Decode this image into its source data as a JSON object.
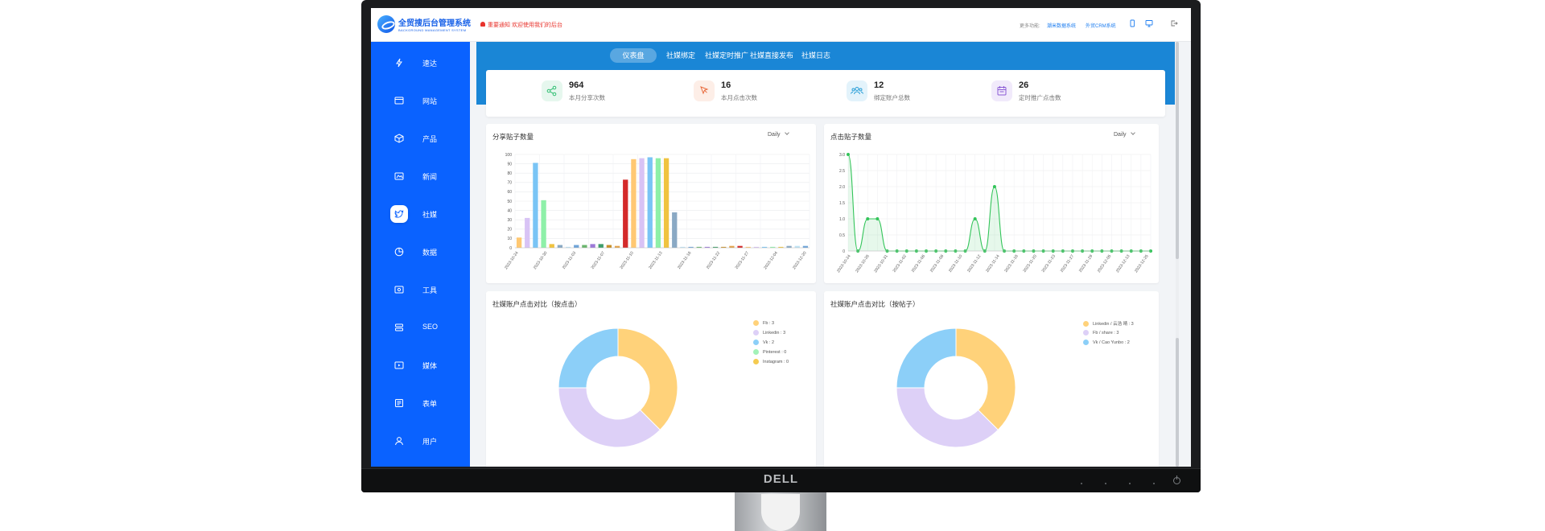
{
  "monitor": {
    "brand": "DELL"
  },
  "topbar": {
    "logo_title": "全贸搜后台管理系统",
    "logo_subtitle": "BACKGROUND MANAGEMENT SYSTEM",
    "notice": "重要通知 欢迎使用我们的后台",
    "more_label": "更多功能:",
    "links": [
      "潮米数据系统",
      "外贸CRM系统"
    ],
    "icons": [
      "mobile-icon",
      "desktop-icon",
      "logout-icon"
    ]
  },
  "sidebar": {
    "items": [
      {
        "label": "速达",
        "icon": "bolt-icon"
      },
      {
        "label": "网站",
        "icon": "browser-icon"
      },
      {
        "label": "产品",
        "icon": "box-icon"
      },
      {
        "label": "新闻",
        "icon": "news-icon"
      },
      {
        "label": "社媒",
        "icon": "twitter-icon",
        "active": true
      },
      {
        "label": "数据",
        "icon": "chart-icon"
      },
      {
        "label": "工具",
        "icon": "tool-icon"
      },
      {
        "label": "SEO",
        "icon": "seo-icon"
      },
      {
        "label": "媒体",
        "icon": "media-icon"
      },
      {
        "label": "表单",
        "icon": "form-icon"
      },
      {
        "label": "用户",
        "icon": "user-icon"
      }
    ]
  },
  "tabs": [
    "仪表盘",
    "社媒绑定",
    "社媒定时推广",
    "社媒直接发布",
    "社媒日志"
  ],
  "active_tab": 0,
  "stats": [
    {
      "value": "964",
      "label": "本月分享次数",
      "icon": "share-icon",
      "color": "#2fbf71",
      "bg": "#e6f7ee"
    },
    {
      "value": "16",
      "label": "本月点击次数",
      "icon": "click-icon",
      "color": "#e86a3c",
      "bg": "#fdeee7"
    },
    {
      "value": "12",
      "label": "绑定账户总数",
      "icon": "users-icon",
      "color": "#2a9fd8",
      "bg": "#e3f3fb"
    },
    {
      "value": "26",
      "label": "定时推广点击数",
      "icon": "calendar-icon",
      "color": "#8b5bd6",
      "bg": "#f1eafb"
    }
  ],
  "cards": {
    "share_posts": {
      "title": "分享贴子数量",
      "period": "Daily"
    },
    "click_posts": {
      "title": "点击贴子数量",
      "period": "Daily"
    },
    "pie_click": {
      "title": "社媒账户点击对比（按点击）"
    },
    "pie_post": {
      "title": "社媒账户点击对比（按帖子）"
    }
  },
  "chart_data": [
    {
      "type": "bar",
      "title": "分享贴子数量",
      "ylim": [
        0,
        100
      ],
      "yticks": [
        0,
        10,
        20,
        30,
        40,
        50,
        60,
        70,
        80,
        90,
        100
      ],
      "xtick_labels": [
        "2023-10-24",
        "2023-10-30",
        "2023-11-03",
        "2023-11-07",
        "2023-11-10",
        "2023-11-13",
        "2023-11-16",
        "2023-11-22",
        "2023-11-27",
        "2023-12-04",
        "2023-12-20"
      ],
      "values": [
        11,
        32,
        91,
        51,
        4,
        3,
        1,
        3,
        3,
        4,
        4,
        3,
        2,
        73,
        95,
        96,
        97,
        96,
        96,
        38,
        1,
        1,
        1,
        1,
        1,
        1,
        2,
        2,
        1,
        1,
        1,
        1,
        1,
        2,
        2,
        2
      ],
      "colors": [
        "#ffc872",
        "#d8c3f5",
        "#79c4f5",
        "#8ef0a8",
        "#f0c340",
        "#8aa9c4",
        "#bfe3f5",
        "#6fa4d8",
        "#69b56c",
        "#9d7ad8",
        "#3e9d6a",
        "#c8902a",
        "#e2a24a",
        "#d42a2a",
        "#ffc872",
        "#d8c3f5",
        "#79c4f5",
        "#8ef0a8",
        "#f0c340",
        "#8aa9c4",
        "#bfe3f5",
        "#6fa4d8",
        "#69b56c",
        "#9d7ad8",
        "#3e9d6a",
        "#c8902a",
        "#e2a24a",
        "#d42a2a",
        "#ffc872",
        "#d8c3f5",
        "#79c4f5",
        "#8ef0a8",
        "#f0c340",
        "#8aa9c4",
        "#bfe3f5",
        "#6fa4d8"
      ],
      "grid": true
    },
    {
      "type": "line",
      "title": "点击贴子数量",
      "ylim": [
        0,
        3
      ],
      "yticks": [
        "0",
        "0.5",
        "1.0",
        "1.5",
        "2.0",
        "2.5",
        "3.0"
      ],
      "xtick_labels": [
        "2023-10-24",
        "2023-10-26",
        "2023-10-31",
        "2023-11-02",
        "2023-11-06",
        "2023-11-08",
        "2023-11-10",
        "2023-11-12",
        "2023-11-14",
        "2023-11-16",
        "2023-11-20",
        "2023-11-23",
        "2023-11-27",
        "2023-11-29",
        "2023-12-05",
        "2023-12-13",
        "2023-12-25"
      ],
      "values": [
        3,
        0,
        1,
        1,
        0,
        0,
        0,
        0,
        0,
        0,
        0,
        0,
        0,
        1,
        0,
        2,
        0,
        0,
        0,
        0,
        0,
        0,
        0,
        0,
        0,
        0,
        0,
        0,
        0,
        0,
        0,
        0
      ],
      "color": "#33c45a",
      "grid": true
    },
    {
      "type": "pie",
      "title": "社媒账户点击对比（按点击）",
      "slices": [
        {
          "label": "Fb : 3",
          "value": 3,
          "color": "#ffd27a"
        },
        {
          "label": "Linkedin : 3",
          "value": 3,
          "color": "#ddd0f7"
        },
        {
          "label": "Vk : 2",
          "value": 2,
          "color": "#8ccff8"
        },
        {
          "label": "Pinterest : 0",
          "value": 0,
          "color": "#a3f2b8"
        },
        {
          "label": "Instagram : 0",
          "value": 0,
          "color": "#f5cb50"
        }
      ]
    },
    {
      "type": "pie",
      "title": "社媒账户点击对比（按帖子）",
      "slices": [
        {
          "label": "Linkedin / 云浩 晴 : 3",
          "value": 3,
          "color": "#ffd27a"
        },
        {
          "label": "Fb / share : 3",
          "value": 3,
          "color": "#ddd0f7"
        },
        {
          "label": "Vk / Cao Yunbo : 2",
          "value": 2,
          "color": "#8ccff8"
        }
      ]
    }
  ]
}
